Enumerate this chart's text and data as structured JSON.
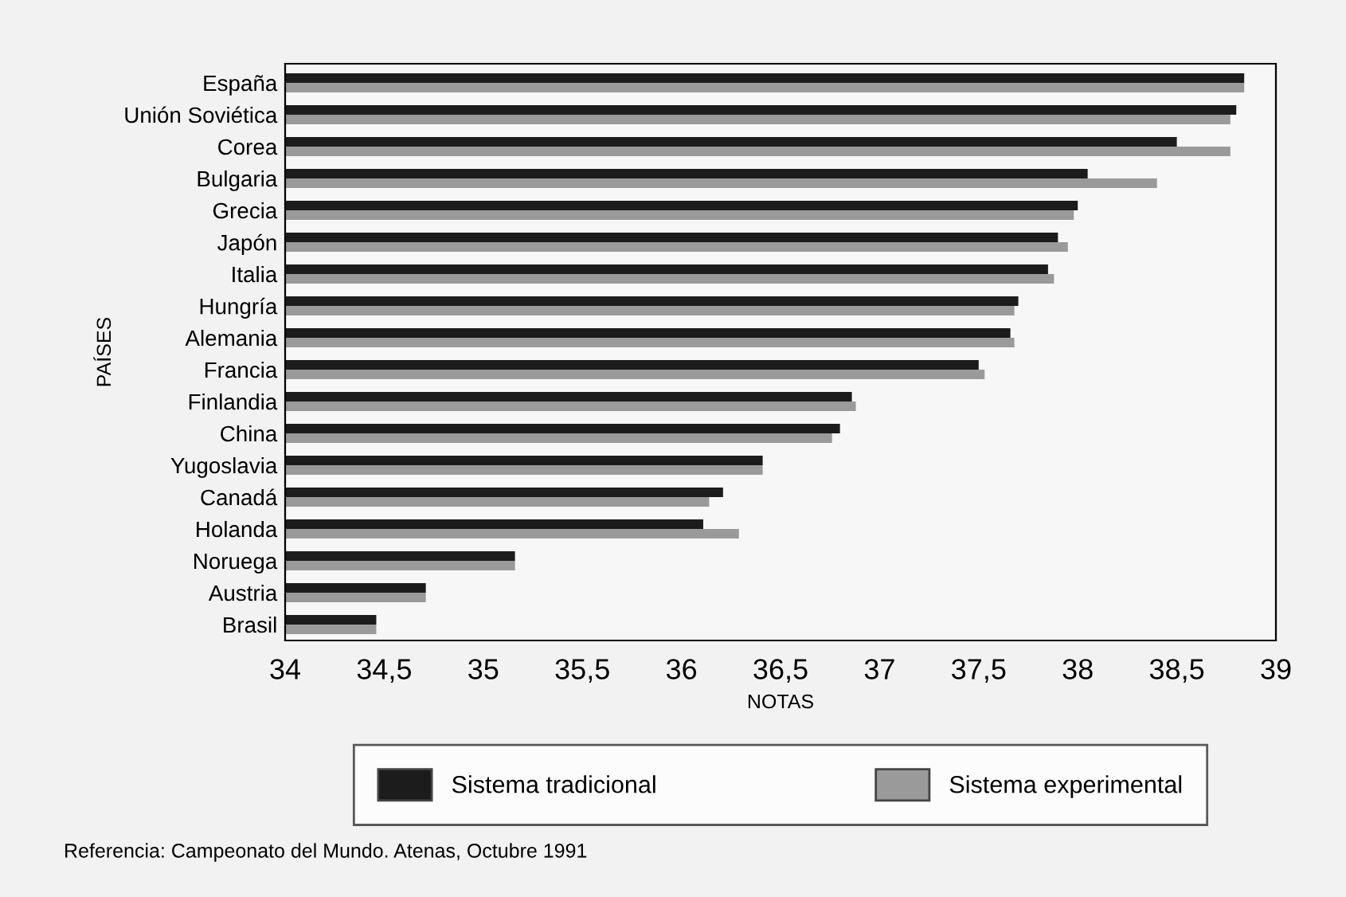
{
  "chart_data": {
    "type": "bar",
    "orientation": "horizontal",
    "xlabel": "NOTAS",
    "ylabel": "PAÍSES",
    "categories": [
      "España",
      "Unión Soviética",
      "Corea",
      "Bulgaria",
      "Grecia",
      "Japón",
      "Italia",
      "Hungría",
      "Alemania",
      "Francia",
      "Finlandia",
      "China",
      "Yugoslavia",
      "Canadá",
      "Holanda",
      "Noruega",
      "Austria",
      "Brasil"
    ],
    "series": [
      {
        "name": "Sistema tradicional",
        "color": "#1c1c1c",
        "values": [
          38.84,
          38.8,
          38.5,
          38.05,
          38.0,
          37.9,
          37.85,
          37.7,
          37.66,
          37.5,
          36.86,
          36.8,
          36.41,
          36.21,
          36.11,
          35.16,
          34.71,
          34.46
        ]
      },
      {
        "name": "Sistema experimental",
        "color": "#9a9a9a",
        "values": [
          38.84,
          38.77,
          38.77,
          38.4,
          37.98,
          37.95,
          37.88,
          37.68,
          37.68,
          37.53,
          36.88,
          36.76,
          36.41,
          36.14,
          36.29,
          35.16,
          34.71,
          34.46
        ]
      }
    ],
    "xlim": [
      34,
      39
    ],
    "xticks": [
      34,
      {
        "value": 34.5,
        "label": "34,5"
      },
      35,
      {
        "value": 35.5,
        "label": "35,5"
      },
      36,
      {
        "value": 36.5,
        "label": "36,5"
      },
      37,
      {
        "value": 37.5,
        "label": "37,5"
      },
      38,
      {
        "value": 38.5,
        "label": "38,5"
      },
      39
    ],
    "grid": false,
    "legend": "bottom",
    "annotations": [
      "Referencia: Campeonato del Mundo. Atenas, Octubre 1991"
    ]
  }
}
